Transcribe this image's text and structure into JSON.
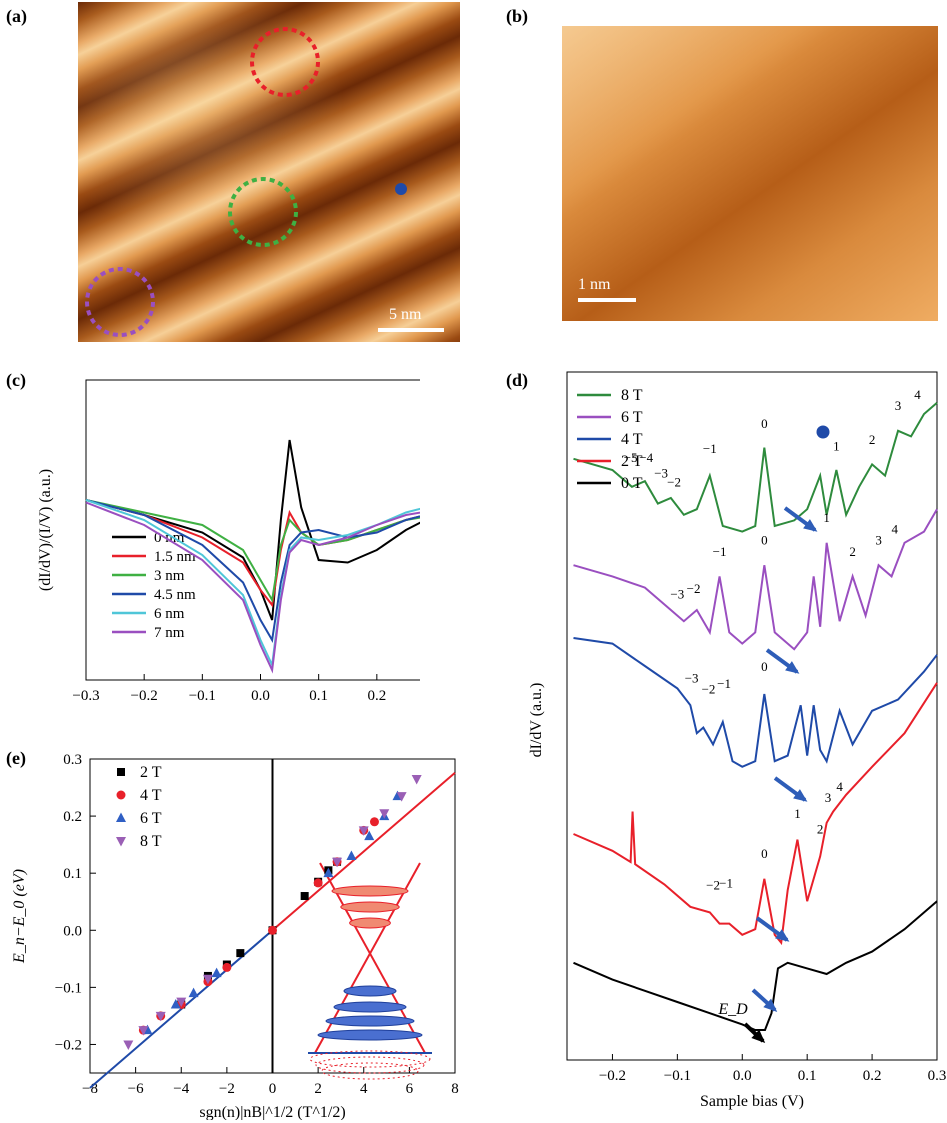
{
  "panels": {
    "a": {
      "label": "(a)",
      "scale_label": "5 nm",
      "circle_colors": [
        "#e8202a",
        "#3fb043",
        "#9a4fc0"
      ],
      "dot_color": "#1f4aa8"
    },
    "b": {
      "label": "(b)",
      "scale_label": "1 nm"
    },
    "c": {
      "label": "(c)"
    },
    "d": {
      "label": "(d)"
    },
    "e": {
      "label": "(e)"
    }
  },
  "chart_data": [
    {
      "id": "c",
      "type": "line",
      "xlabel": "Sample bias (V)",
      "ylabel": "(dI/dV)/(I/V) (a.u.)",
      "xlim": [
        -0.3,
        0.3
      ],
      "xticks": [
        "−0.3",
        "−0.2",
        "−0.1",
        "0.0",
        "0.1",
        "0.2",
        "0.3"
      ],
      "legend_position": "lower-left",
      "series": [
        {
          "name": "0 nm",
          "color": "#000000",
          "x": [
            -0.3,
            -0.2,
            -0.1,
            -0.03,
            0.0,
            0.02,
            0.035,
            0.05,
            0.07,
            0.1,
            0.15,
            0.2,
            0.25,
            0.3
          ],
          "y": [
            0.68,
            0.62,
            0.55,
            0.45,
            0.32,
            0.2,
            0.6,
            0.92,
            0.65,
            0.44,
            0.43,
            0.48,
            0.56,
            0.62
          ]
        },
        {
          "name": "1.5 nm",
          "color": "#e8202a",
          "x": [
            -0.3,
            -0.2,
            -0.1,
            -0.03,
            0.0,
            0.02,
            0.035,
            0.05,
            0.07,
            0.1,
            0.15,
            0.2,
            0.25,
            0.3
          ],
          "y": [
            0.68,
            0.62,
            0.53,
            0.43,
            0.32,
            0.26,
            0.48,
            0.63,
            0.55,
            0.5,
            0.52,
            0.56,
            0.6,
            0.63
          ]
        },
        {
          "name": "3 nm",
          "color": "#3fb043",
          "x": [
            -0.3,
            -0.2,
            -0.1,
            -0.03,
            0.0,
            0.02,
            0.035,
            0.05,
            0.07,
            0.1,
            0.15,
            0.2,
            0.25,
            0.3
          ],
          "y": [
            0.68,
            0.63,
            0.58,
            0.48,
            0.36,
            0.28,
            0.5,
            0.6,
            0.55,
            0.5,
            0.52,
            0.56,
            0.6,
            0.62
          ]
        },
        {
          "name": "4.5 nm",
          "color": "#1f4aa8",
          "x": [
            -0.3,
            -0.2,
            -0.1,
            -0.03,
            0.0,
            0.02,
            0.035,
            0.05,
            0.07,
            0.1,
            0.15,
            0.2,
            0.25,
            0.3
          ],
          "y": [
            0.68,
            0.62,
            0.5,
            0.35,
            0.2,
            0.12,
            0.35,
            0.5,
            0.55,
            0.56,
            0.53,
            0.55,
            0.6,
            0.63
          ]
        },
        {
          "name": "6 nm",
          "color": "#4fc6d8",
          "x": [
            -0.3,
            -0.2,
            -0.1,
            -0.03,
            0.0,
            0.02,
            0.035,
            0.05,
            0.07,
            0.1,
            0.15,
            0.2,
            0.25,
            0.3
          ],
          "y": [
            0.68,
            0.6,
            0.46,
            0.3,
            0.12,
            0.02,
            0.3,
            0.48,
            0.53,
            0.52,
            0.54,
            0.58,
            0.63,
            0.66
          ]
        },
        {
          "name": "7 nm",
          "color": "#9a4fc0",
          "x": [
            -0.3,
            -0.2,
            -0.1,
            -0.03,
            0.0,
            0.02,
            0.035,
            0.05,
            0.07,
            0.1,
            0.15,
            0.2,
            0.25,
            0.3
          ],
          "y": [
            0.67,
            0.58,
            0.44,
            0.28,
            0.1,
            0.0,
            0.28,
            0.47,
            0.52,
            0.5,
            0.53,
            0.58,
            0.62,
            0.64
          ]
        }
      ]
    },
    {
      "id": "d",
      "type": "line",
      "xlabel": "Sample bias (V)",
      "ylabel": "dI/dV (a.u.)",
      "xlim": [
        -0.27,
        0.3
      ],
      "xticks": [
        "−0.2",
        "−0.1",
        "0.0",
        "0.1",
        "0.2",
        "0.3"
      ],
      "legend_position": "top-left",
      "annotation": "E_D",
      "series": [
        {
          "name": "8 T",
          "color": "#2e8b3d",
          "x": [
            -0.26,
            -0.2,
            -0.17,
            -0.15,
            -0.13,
            -0.11,
            -0.09,
            -0.07,
            -0.05,
            -0.03,
            0.0,
            0.02,
            0.034,
            0.05,
            0.08,
            0.1,
            0.12,
            0.13,
            0.145,
            0.16,
            0.18,
            0.2,
            0.22,
            0.24,
            0.26,
            0.28,
            0.3
          ],
          "y": [
            4.5,
            4.4,
            4.25,
            4.3,
            4.1,
            4.15,
            4.0,
            4.05,
            4.35,
            3.9,
            3.85,
            3.9,
            4.6,
            3.9,
            3.95,
            4.05,
            4.35,
            4.0,
            4.4,
            4.0,
            4.25,
            4.45,
            4.35,
            4.75,
            4.7,
            4.9,
            5.0
          ]
        },
        {
          "name": "6 T",
          "color": "#9a4fc0",
          "x": [
            -0.26,
            -0.2,
            -0.15,
            -0.11,
            -0.09,
            -0.07,
            -0.05,
            -0.035,
            -0.02,
            0.0,
            0.02,
            0.034,
            0.05,
            0.08,
            0.1,
            0.11,
            0.12,
            0.13,
            0.15,
            0.17,
            0.19,
            0.21,
            0.23,
            0.25,
            0.28,
            0.3
          ],
          "y": [
            3.55,
            3.45,
            3.35,
            3.15,
            3.05,
            3.15,
            2.95,
            3.45,
            2.95,
            2.85,
            2.95,
            3.55,
            2.95,
            2.8,
            2.95,
            3.45,
            3.0,
            3.75,
            3.05,
            3.45,
            3.1,
            3.55,
            3.45,
            3.75,
            3.85,
            4.05
          ]
        },
        {
          "name": "4 T",
          "color": "#1f4aa8",
          "x": [
            -0.26,
            -0.2,
            -0.15,
            -0.1,
            -0.08,
            -0.07,
            -0.06,
            -0.045,
            -0.03,
            -0.015,
            0.0,
            0.02,
            0.034,
            0.05,
            0.07,
            0.09,
            0.1,
            0.11,
            0.12,
            0.13,
            0.15,
            0.17,
            0.2,
            0.24,
            0.28,
            0.3
          ],
          "y": [
            2.9,
            2.85,
            2.65,
            2.45,
            2.3,
            2.05,
            2.1,
            1.95,
            2.15,
            1.8,
            1.75,
            1.8,
            2.4,
            1.8,
            1.85,
            2.3,
            1.85,
            2.3,
            1.9,
            1.8,
            2.25,
            1.95,
            2.25,
            2.35,
            2.6,
            2.75
          ]
        },
        {
          "name": "2 T",
          "color": "#e8202a",
          "x": [
            -0.26,
            -0.2,
            -0.172,
            -0.169,
            -0.165,
            -0.12,
            -0.08,
            -0.05,
            -0.035,
            -0.02,
            0.0,
            0.02,
            0.034,
            0.05,
            0.06,
            0.07,
            0.085,
            0.1,
            0.12,
            0.13,
            0.14,
            0.16,
            0.2,
            0.25,
            0.3
          ],
          "y": [
            1.15,
            1.0,
            0.9,
            1.35,
            0.88,
            0.7,
            0.5,
            0.45,
            0.35,
            0.35,
            0.25,
            0.3,
            0.75,
            0.25,
            0.18,
            0.65,
            1.1,
            0.55,
            0.95,
            1.25,
            1.35,
            1.5,
            1.75,
            2.05,
            2.5
          ]
        },
        {
          "name": "0 T",
          "color": "#000000",
          "x": [
            -0.26,
            -0.2,
            -0.15,
            -0.1,
            -0.05,
            0.0,
            0.02,
            0.035,
            0.045,
            0.055,
            0.07,
            0.1,
            0.13,
            0.16,
            0.2,
            0.25,
            0.3
          ],
          "y": [
            0.0,
            -0.15,
            -0.25,
            -0.35,
            -0.45,
            -0.55,
            -0.6,
            -0.6,
            -0.45,
            -0.05,
            0.0,
            -0.05,
            -0.1,
            0.0,
            0.1,
            0.3,
            0.55
          ]
        }
      ],
      "peak_labels": [
        {
          "series": "8 T",
          "labels": [
            "−5",
            "−4",
            "−3",
            "−2",
            "−1",
            "0",
            "1",
            "2",
            "3",
            "4"
          ],
          "x": [
            -0.172,
            -0.148,
            -0.125,
            -0.105,
            -0.05,
            0.034,
            0.145,
            0.2,
            0.24,
            0.27
          ],
          "y": [
            4.42,
            4.42,
            4.28,
            4.2,
            4.5,
            4.72,
            4.52,
            4.58,
            4.88,
            4.98
          ]
        },
        {
          "series": "6 T",
          "labels": [
            "−3",
            "−2",
            "−1",
            "0",
            "1",
            "2",
            "3",
            "4"
          ],
          "x": [
            -0.1,
            -0.075,
            -0.035,
            0.034,
            0.13,
            0.17,
            0.21,
            0.235
          ],
          "y": [
            3.2,
            3.25,
            3.58,
            3.68,
            3.88,
            3.58,
            3.68,
            3.78
          ]
        },
        {
          "series": "4 T",
          "labels": [
            "−3",
            "−2",
            "−1",
            "0"
          ],
          "x": [
            -0.078,
            -0.052,
            -0.028,
            0.034
          ],
          "y": [
            2.45,
            2.35,
            2.4,
            2.55
          ]
        },
        {
          "series": "2 T",
          "labels": [
            "−2",
            "−1",
            "0",
            "1",
            "2",
            "3",
            "4"
          ],
          "x": [
            -0.045,
            -0.025,
            0.034,
            0.085,
            0.12,
            0.132,
            0.15
          ],
          "y": [
            0.6,
            0.62,
            0.88,
            1.24,
            1.1,
            1.38,
            1.48
          ]
        }
      ]
    },
    {
      "id": "e",
      "type": "scatter",
      "xlabel": "sgn(n)|nB|^1/2 (T^1/2)",
      "ylabel": "E_n−E_0 (eV)",
      "xlim": [
        -8,
        8
      ],
      "ylim": [
        -0.25,
        0.3
      ],
      "xticks": [
        "−8",
        "−6",
        "−4",
        "−2",
        "0",
        "2",
        "4",
        "6",
        "8"
      ],
      "yticks": [
        "−0.2",
        "−0.1",
        "0.0",
        "0.1",
        "0.2",
        "0.3"
      ],
      "legend_position": "top-left",
      "fit_slope": 0.0345,
      "series": [
        {
          "name": "2 T",
          "color": "#000000",
          "marker": "square",
          "x": [
            -4.0,
            -2.83,
            -2.0,
            -1.41,
            0.0,
            1.41,
            2.0,
            2.45,
            2.83
          ],
          "y": [
            -0.13,
            -0.08,
            -0.06,
            -0.04,
            0.0,
            0.06,
            0.085,
            0.105,
            0.12
          ]
        },
        {
          "name": "4 T",
          "color": "#e8202a",
          "marker": "circle",
          "x": [
            -5.66,
            -4.9,
            -4.0,
            -2.83,
            -2.0,
            0.0,
            2.0,
            2.83,
            4.0,
            4.47
          ],
          "y": [
            -0.175,
            -0.15,
            -0.13,
            -0.09,
            -0.065,
            0.0,
            0.083,
            0.12,
            0.175,
            0.19
          ]
        },
        {
          "name": "6 T",
          "color": "#2f5fc4",
          "marker": "triangle-up",
          "x": [
            -5.48,
            -4.24,
            -3.46,
            -2.45,
            2.45,
            3.46,
            4.24,
            4.9,
            5.48
          ],
          "y": [
            -0.175,
            -0.13,
            -0.11,
            -0.075,
            0.1,
            0.13,
            0.165,
            0.2,
            0.235
          ]
        },
        {
          "name": "8 T",
          "color": "#9a5fb5",
          "marker": "triangle-down",
          "x": [
            -6.32,
            -5.66,
            -4.9,
            -4.0,
            -2.83,
            2.83,
            4.0,
            4.9,
            5.66,
            6.32
          ],
          "y": [
            -0.2,
            -0.175,
            -0.15,
            -0.125,
            -0.085,
            0.12,
            0.175,
            0.205,
            0.235,
            0.265
          ]
        }
      ]
    }
  ]
}
